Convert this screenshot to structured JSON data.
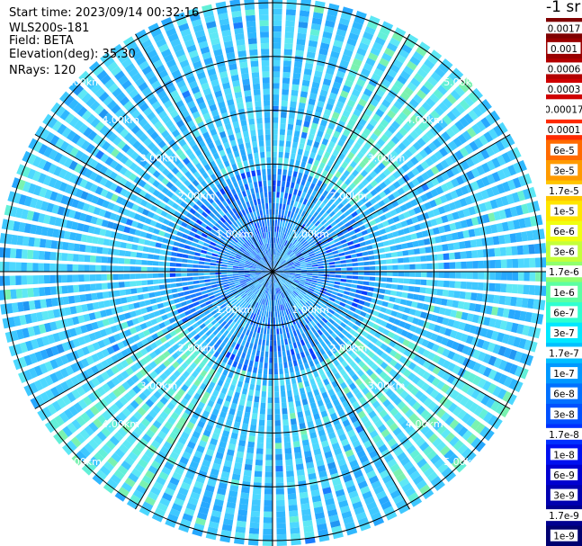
{
  "header": {
    "start_time": "Start time: 2023/09/14 00:32:16",
    "instrument": "WLS200s-181",
    "field": "Field: BETA",
    "elevation": "Elevation(deg): 35.30",
    "nrays": "NRays: 120"
  },
  "colorbar": {
    "unit_label": "-1 sr",
    "labels": [
      "0.0017",
      "0.001",
      "0.0006",
      "0.0003",
      "0.00017",
      "0.0001",
      "6e-5",
      "3e-5",
      "1.7e-5",
      "1e-5",
      "6e-6",
      "3e-6",
      "1.7e-6",
      "1e-6",
      "6e-7",
      "3e-7",
      "1.7e-7",
      "1e-7",
      "6e-8",
      "3e-8",
      "1.7e-8",
      "1e-8",
      "6e-9",
      "3e-9",
      "1.7e-9",
      "1e-9"
    ],
    "colors": [
      "#7f0000",
      "#990000",
      "#b30000",
      "#d00000",
      "#ffffff",
      "#ff2a00",
      "#ff6a00",
      "#ff9a00",
      "#ffc400",
      "#ffe600",
      "#f0ff10",
      "#c4ff3a",
      "#90ff6e",
      "#5cffa2",
      "#2effd0",
      "#00e8ff",
      "#00c0ff",
      "#0098ff",
      "#0070ff",
      "#0050ff",
      "#0030ff",
      "#0010f0",
      "#0000d0",
      "#0000b0",
      "#000090",
      "#000070"
    ]
  },
  "chart_data": {
    "type": "heatmap",
    "title": "",
    "nrays": 120,
    "range_ring_labels": [
      "1.00km",
      "2.00km",
      "3.00km",
      "4.00km",
      "5.00km"
    ],
    "range_rings_km": [
      1,
      2,
      3,
      4,
      5
    ],
    "max_range_km": 5.1,
    "spoke_angles_deg": [
      0,
      30,
      60,
      90,
      120,
      150
    ],
    "grid": true
  }
}
